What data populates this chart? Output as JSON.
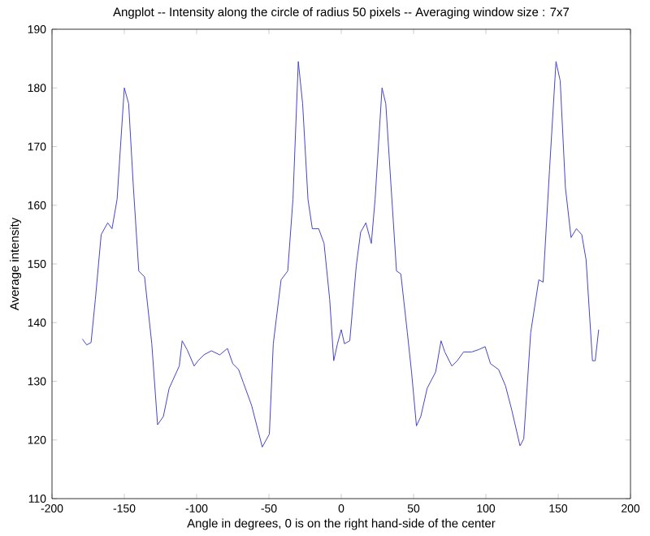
{
  "chart_data": {
    "type": "line",
    "title": "Angplot -- Intensity along the circle of radius 50 pixels -- Averaging window size : 7x7",
    "xlabel": "Angle in degrees, 0 is on the right hand-side of the center",
    "ylabel": "Average intensity",
    "xlim": [
      -200,
      200
    ],
    "ylim": [
      110,
      190
    ],
    "xticks": [
      -200,
      -150,
      -100,
      -50,
      0,
      50,
      100,
      150,
      200
    ],
    "yticks": [
      110,
      120,
      130,
      140,
      150,
      160,
      170,
      180,
      190
    ],
    "marker": "none",
    "line_style": "solid",
    "series": [
      {
        "color": "#4444cc",
        "x": [
          -179,
          -176,
          -173,
          -170,
          -166,
          -161.5,
          -158.5,
          -155,
          -150,
          -147,
          -143.7,
          -140,
          -136,
          -131,
          -127,
          -123,
          -119,
          -112,
          -110,
          -106.6,
          -101.7,
          -99,
          -95,
          -89.8,
          -84,
          -78.7,
          -75,
          -71,
          -67.6,
          -62,
          -54.6,
          -49.7,
          -47,
          -41.6,
          -37,
          -33.4,
          -29.7,
          -26.7,
          -23,
          -20,
          -15.6,
          -11.9,
          -8,
          -5.2,
          -2.6,
          0,
          2.2,
          5.9,
          10.4,
          13.4,
          17,
          20.8,
          23.4,
          28.2,
          30.8,
          34.5,
          38.2,
          41.2,
          45.7,
          48.6,
          52,
          55,
          59.4,
          65.3,
          69,
          71.6,
          76.5,
          80.2,
          84.6,
          90.2,
          95,
          99.5,
          103.2,
          108.8,
          113.6,
          118,
          123.6,
          126.2,
          131,
          136.6,
          139.6,
          144,
          148.5,
          151.4,
          155,
          158.9,
          162.6,
          166.3,
          169.3,
          173.7,
          175.6,
          178
        ],
        "values": [
          137.2,
          136.2,
          136.6,
          144,
          155,
          157,
          156,
          161,
          180,
          177.3,
          163,
          148.8,
          147.8,
          136.4,
          122.6,
          124,
          128.8,
          132.6,
          136.9,
          135.4,
          132.6,
          133.5,
          134.5,
          135.2,
          134.5,
          135.6,
          133,
          132,
          129.7,
          125.9,
          118.8,
          121,
          136.4,
          147.3,
          148.8,
          161,
          184.5,
          177.3,
          161,
          156,
          156,
          153.5,
          144,
          133.5,
          136.4,
          138.8,
          136.4,
          136.9,
          149.7,
          155.4,
          157,
          153.5,
          161,
          180,
          177.3,
          163,
          148.8,
          148.3,
          138.3,
          131.6,
          122.4,
          124,
          128.8,
          131.6,
          136.9,
          135,
          132.6,
          133.5,
          135,
          135,
          135.4,
          135.9,
          133,
          132,
          129.2,
          125,
          119,
          120.2,
          138.3,
          147.3,
          146.9,
          166,
          184.5,
          181.2,
          163,
          154.5,
          156,
          155,
          150.7,
          133.5,
          133.5,
          138.8
        ]
      }
    ]
  }
}
